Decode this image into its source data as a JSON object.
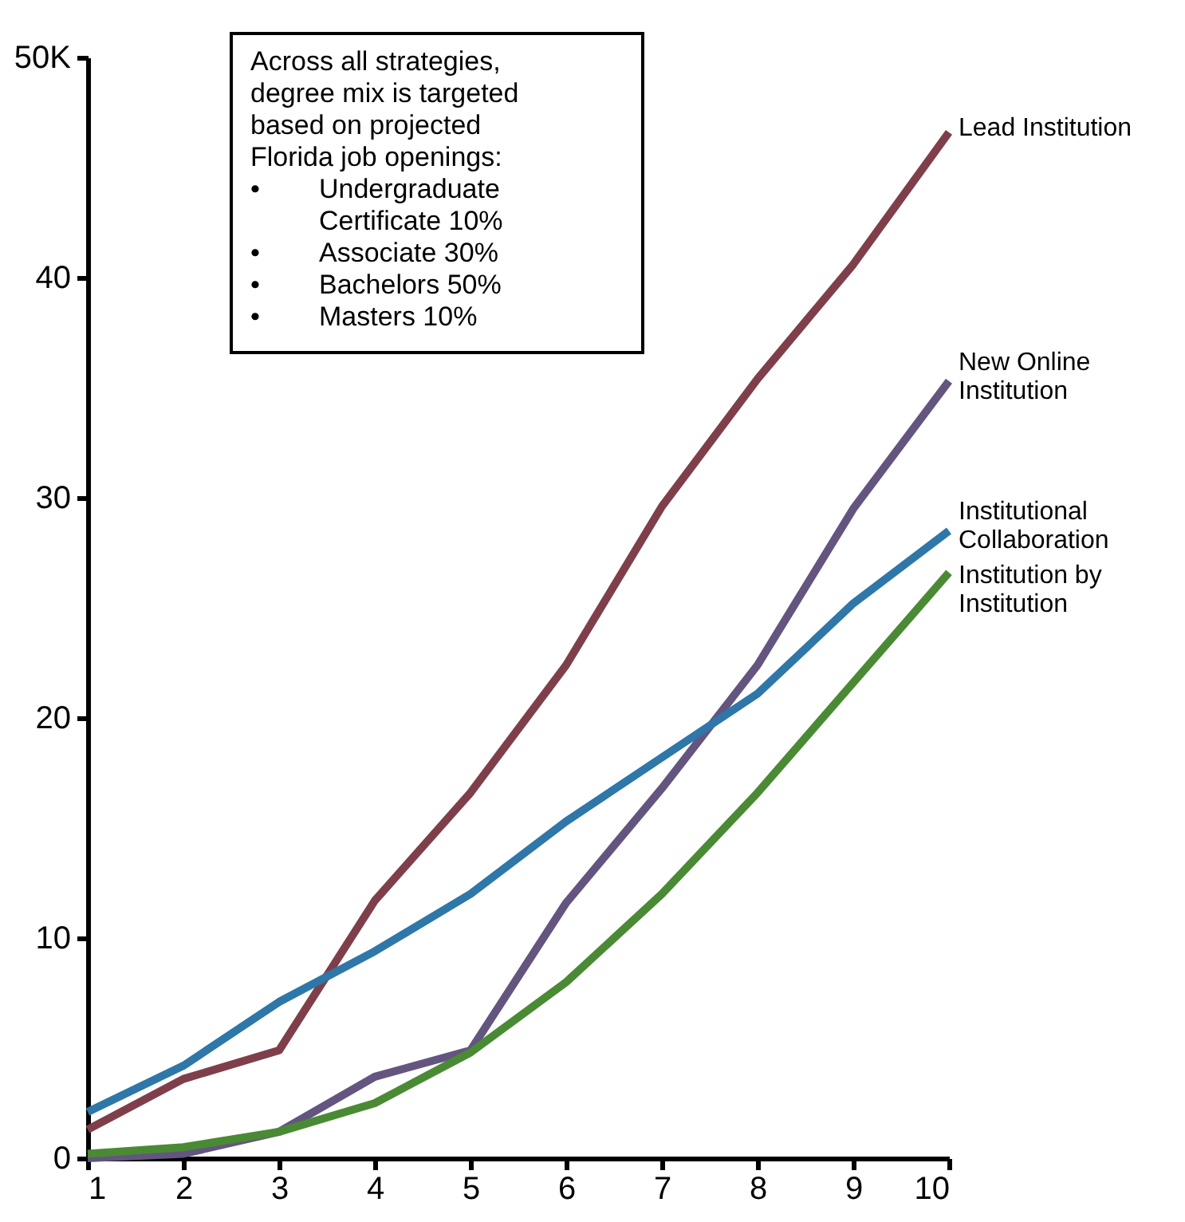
{
  "chart_data": {
    "type": "line",
    "x": [
      1,
      2,
      3,
      4,
      5,
      6,
      7,
      8,
      9,
      10
    ],
    "xlim": [
      1,
      10
    ],
    "xticks": [
      1,
      2,
      3,
      4,
      5,
      6,
      7,
      8,
      9,
      10
    ],
    "ylim": [
      0,
      50
    ],
    "yticks": [
      0,
      10,
      20,
      30,
      40,
      {
        "value": 50,
        "label": "50K"
      }
    ],
    "grid": false,
    "marker": "none",
    "line_style": "solid",
    "annotations": [
      "Across all strategies,\ndegree mix is targeted\nbased on projected\nFlorida job openings:\n• Undergraduate\n  Certificate 10%\n• Associate 30%\n• Bachelors 50%\n• Masters 10%"
    ],
    "series": [
      {
        "name": "Lead Institution",
        "color": "#7f3f4a",
        "values": [
          1.3,
          3.6,
          4.9,
          11.7,
          16.6,
          22.4,
          29.6,
          35.4,
          40.6,
          46.6
        ]
      },
      {
        "name": "New Online\nInstitution",
        "color": "#63557f",
        "values": [
          0,
          0.2,
          1.2,
          3.7,
          4.9,
          11.6,
          16.8,
          22.4,
          29.5,
          35.3
        ]
      },
      {
        "name": "Institutional\nCollaboration",
        "color": "#2e77a8",
        "values": [
          2.1,
          4.2,
          7.1,
          9.4,
          12.0,
          15.3,
          18.2,
          21.1,
          25.2,
          28.5
        ]
      },
      {
        "name": "Institution by\nInstitution",
        "color": "#4a8a34",
        "values": [
          0.2,
          0.5,
          1.2,
          2.5,
          4.8,
          8.0,
          12.0,
          16.6,
          21.6,
          26.6
        ]
      }
    ]
  }
}
